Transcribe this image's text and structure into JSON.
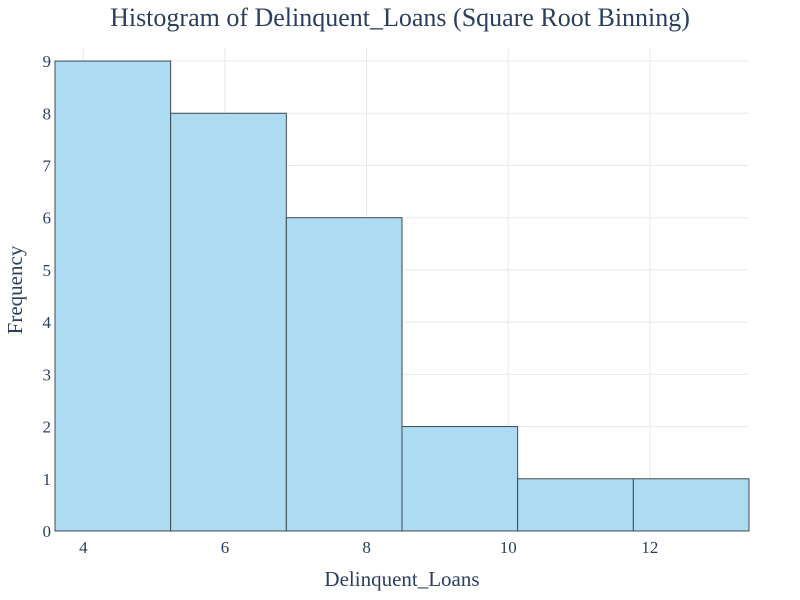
{
  "chart_data": {
    "type": "bar",
    "title": "Histogram of Delinquent_Loans (Square Root Binning)",
    "xlabel": "Delinquent_Loans",
    "ylabel": "Frequency",
    "bins": [
      {
        "start": 3.6,
        "end": 5.233,
        "count": 9
      },
      {
        "start": 5.233,
        "end": 6.867,
        "count": 8
      },
      {
        "start": 6.867,
        "end": 8.5,
        "count": 6
      },
      {
        "start": 8.5,
        "end": 10.133,
        "count": 2
      },
      {
        "start": 10.133,
        "end": 11.767,
        "count": 1
      },
      {
        "start": 11.767,
        "end": 13.4,
        "count": 1
      }
    ],
    "xlim": [
      3.6,
      13.4
    ],
    "ylim": [
      0,
      9.25
    ],
    "xticks": [
      4,
      6,
      8,
      10,
      12
    ],
    "yticks": [
      0,
      1,
      2,
      3,
      4,
      5,
      6,
      7,
      8,
      9
    ],
    "grid": true,
    "bar_color": "#ADDBF1",
    "bar_edge_color": "#3C4A52"
  }
}
